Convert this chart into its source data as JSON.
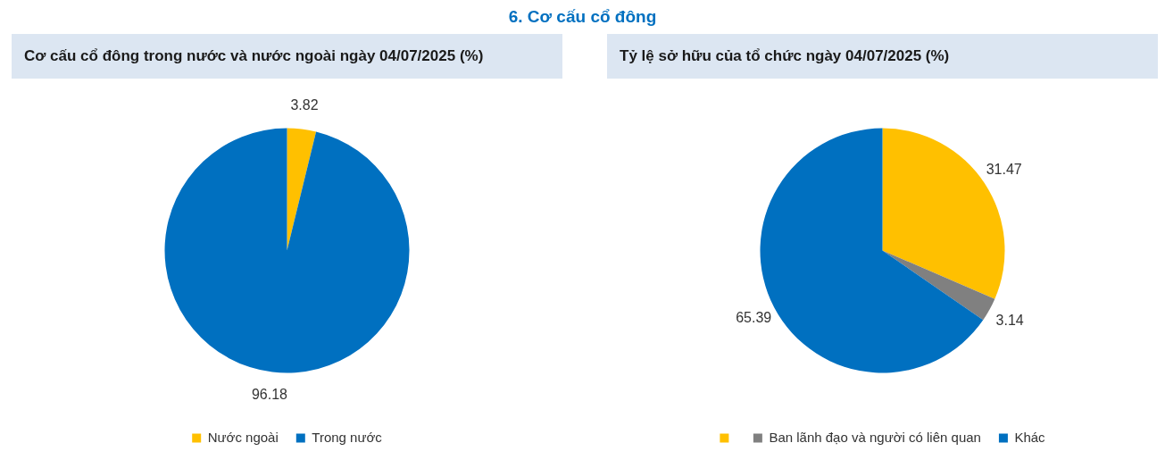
{
  "chart_data": [
    {
      "type": "pie",
      "title": "Cơ cấu cổ đông trong nước và nước ngoài ngày 04/07/2025 (%)",
      "annotations": [
        "6. Cơ cấu cổ đông"
      ],
      "categories": [
        "Nước ngoài",
        "Trong nước"
      ],
      "values": [
        3.82,
        96.18
      ],
      "colors": [
        "#ffc000",
        "#0070c0"
      ],
      "data_labels": true,
      "legend": "bottom"
    },
    {
      "type": "pie",
      "title": "Tỷ lệ sở hữu của tổ chức ngày 04/07/2025 (%)",
      "categories": [
        null,
        "Ban lãnh đạo và người có liên quan",
        "Khác"
      ],
      "values": [
        31.47,
        3.14,
        65.39
      ],
      "colors": [
        "#ffc000",
        "#808080",
        "#0070c0"
      ],
      "data_labels": true,
      "legend": "bottom"
    }
  ]
}
